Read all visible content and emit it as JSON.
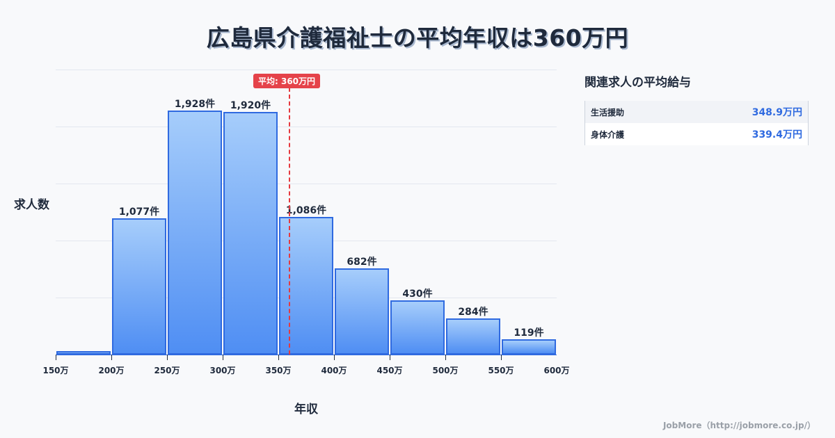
{
  "title": "広島県介護福祉士の平均年収は360万円",
  "chart_data": {
    "type": "bar",
    "title": "広島県介護福祉士の平均年収は360万円",
    "xlabel": "年収",
    "ylabel": "求人数",
    "categories": [
      "150-200万",
      "200-250万",
      "250-300万",
      "300-350万",
      "350-400万",
      "400-450万",
      "450-500万",
      "500-550万",
      "550-600万"
    ],
    "values": [
      30,
      1077,
      1928,
      1920,
      1086,
      682,
      430,
      284,
      119
    ],
    "labels": [
      "",
      "1,077件",
      "1,928件",
      "1,920件",
      "1,086件",
      "682件",
      "430件",
      "284件",
      "119件"
    ],
    "x_ticks": [
      "150万",
      "200万",
      "250万",
      "300万",
      "350万",
      "400万",
      "450万",
      "500万",
      "550万",
      "600万"
    ],
    "xlim": [
      150,
      600
    ],
    "ylim": [
      0,
      2253
    ],
    "grid": true,
    "average": {
      "value": 360,
      "label": "平均: 360万円",
      "color": "#e5393f"
    },
    "bar_color": "#4f8ef3",
    "bar_border_color": "#2f6ae0"
  },
  "side_panel": {
    "title": "関連求人の平均給与",
    "rows": [
      {
        "name": "生活援助",
        "value": "348.9万円"
      },
      {
        "name": "身体介護",
        "value": "339.4万円"
      }
    ]
  },
  "credit": "JobMore（http://jobmore.co.jp/）"
}
